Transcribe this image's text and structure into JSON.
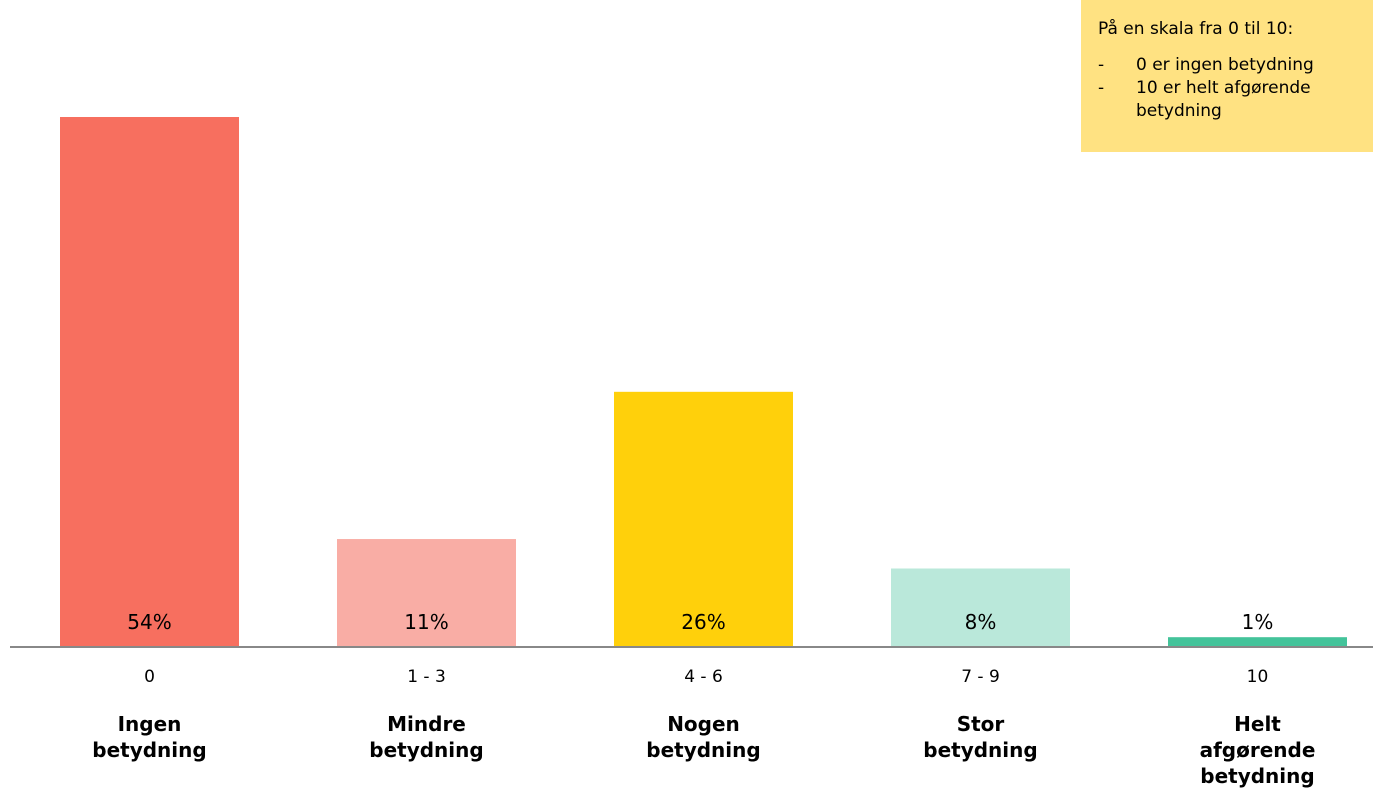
{
  "note": {
    "title": "På en skala fra 0 til 10:",
    "items": [
      {
        "dash": "-",
        "text": "0 er ingen betydning"
      },
      {
        "dash": "-",
        "text": "10 er helt afgørende betydning"
      }
    ]
  },
  "chart_data": {
    "type": "bar",
    "title": "",
    "xlabel": "",
    "ylabel": "",
    "ylim": [
      0,
      60
    ],
    "grid": false,
    "value_suffix": "%",
    "categories": [
      "0",
      "1 - 3",
      "4 - 6",
      "7 - 9",
      "10"
    ],
    "category_names": [
      [
        "Ingen",
        "betydning"
      ],
      [
        "Mindre",
        "betydning"
      ],
      [
        "Nogen",
        "betydning"
      ],
      [
        "Stor",
        "betydning"
      ],
      [
        "Helt",
        "afgørende",
        "betydning"
      ]
    ],
    "values": [
      54,
      11,
      26,
      8,
      1
    ],
    "colors": [
      "#F76F5F",
      "#F9ADA5",
      "#FFD00B",
      "#BAE8DA",
      "#43C39A"
    ],
    "axis_color": "#888888"
  }
}
